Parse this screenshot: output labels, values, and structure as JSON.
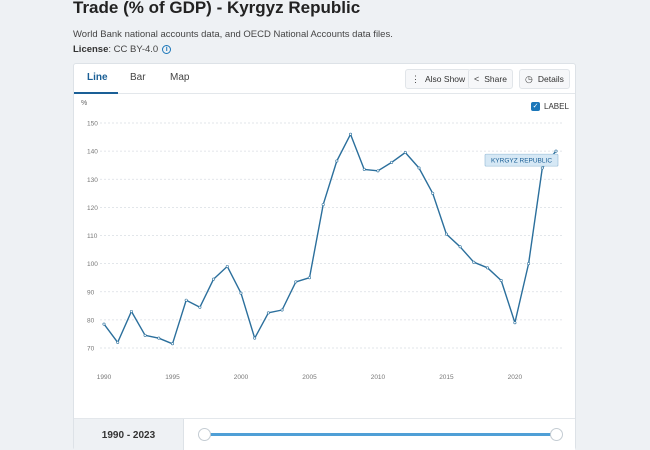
{
  "page": {
    "title": "Trade (% of GDP) - Kyrgyz Republic",
    "source": "World Bank national accounts data, and OECD National Accounts data files.",
    "license_label": "License",
    "license_value": ": CC BY-4.0"
  },
  "tabs": [
    {
      "label": "Line",
      "active": true
    },
    {
      "label": "Bar",
      "active": false
    },
    {
      "label": "Map",
      "active": false
    }
  ],
  "toolbar": {
    "also_show": "Also Show",
    "share": "Share",
    "details": "Details"
  },
  "label_toggle": {
    "label": "LABEL",
    "checked": true
  },
  "footer": {
    "range": "1990 - 2023"
  },
  "colors": {
    "line": "#2b6f9c",
    "accent": "#1a76b9",
    "tag_bg": "#d6e8f5"
  },
  "chart_data": {
    "type": "line",
    "ylabel": "%",
    "xlim": [
      1990,
      2023
    ],
    "ylim": [
      70,
      150
    ],
    "yticks": [
      70,
      80,
      90,
      100,
      110,
      120,
      130,
      140,
      150
    ],
    "xticks": [
      1990,
      1995,
      2000,
      2005,
      2010,
      2015,
      2020
    ],
    "grid": true,
    "series": [
      {
        "name": "KYRGYZ REPUBLIC",
        "x": [
          1990,
          1991,
          1992,
          1993,
          1994,
          1995,
          1996,
          1997,
          1998,
          1999,
          2000,
          2001,
          2002,
          2003,
          2004,
          2005,
          2006,
          2007,
          2008,
          2009,
          2010,
          2011,
          2012,
          2013,
          2014,
          2015,
          2016,
          2017,
          2018,
          2019,
          2020,
          2021,
          2022,
          2023
        ],
        "values": [
          78.5,
          72,
          83,
          74.5,
          73.5,
          71.5,
          87,
          84.5,
          94.5,
          99,
          89.5,
          73.5,
          82.5,
          83.5,
          93.5,
          95,
          121,
          136.5,
          146,
          133.5,
          133,
          136,
          139.5,
          134,
          125,
          110.5,
          106,
          100.5,
          98.5,
          94,
          79,
          100,
          134,
          140
        ]
      }
    ]
  }
}
